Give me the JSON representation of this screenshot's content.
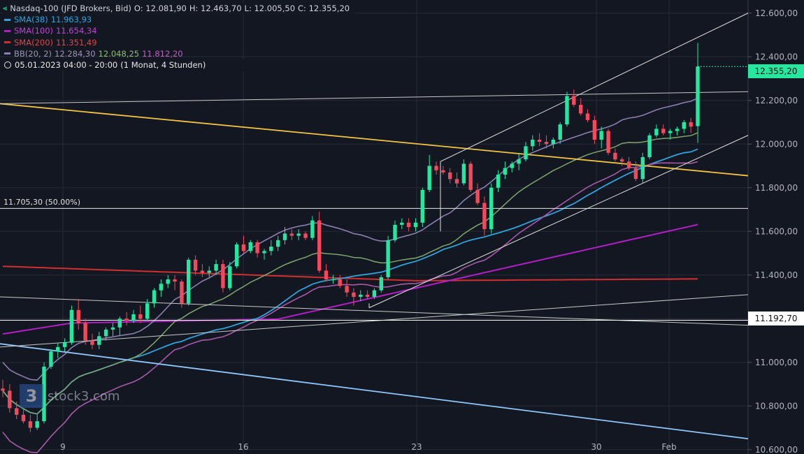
{
  "legend": {
    "instrument": "Nasdaq-100 (JFD Brokers, Bid)",
    "open": "O: 12.081,90",
    "high": "H: 12.463,70",
    "low": "L: 12.005,50",
    "close": "C: 12.355,20",
    "sma38_label": "SMA(38)",
    "sma38_value": "11.963,93",
    "sma100_label": "SMA(100)",
    "sma100_value": "11.654,34",
    "sma200_label": "SMA(200)",
    "sma200_value": "11.351,49",
    "bb_label": "BB(20, 2)",
    "bb_mid": "12.284,30",
    "bb_upper": "12.048,25",
    "bb_lower": "11.812,20",
    "time_range": "05.01.2023 04:00 - 20:00",
    "period": "(1 Monat, 4 Stunden)"
  },
  "price_tag": "12.355,20",
  "level_tag": "11.192,70",
  "fib_label": "11.705,30 (50.00%)",
  "watermark": "stock3.com",
  "colors": {
    "up": "#26e6a0",
    "down": "#f2495c",
    "sma38": "#2ea3dc",
    "sma100": "#b41ec8",
    "sma200": "#d12e2e",
    "bb_band": "#8a7fb0",
    "bb_mid": "#7fa66a",
    "bb_lower": "#a85aa8",
    "trend_yellow": "#f5c542",
    "trend_blue": "#8ec8ff"
  },
  "chart_data": {
    "type": "candlestick",
    "y_ticks": [
      "12.600,00",
      "12.400,00",
      "12.200,00",
      "12.000,00",
      "11.800,00",
      "11.600,00",
      "11.400,00",
      "11.200,00",
      "11.000,00",
      "10.800,00",
      "10.600,00"
    ],
    "x_ticks": [
      "9",
      "16",
      "23",
      "30",
      "Feb"
    ],
    "ylim": [
      10580,
      12660
    ],
    "candles": [
      [
        10880,
        10920,
        10840,
        10870
      ],
      [
        10870,
        10900,
        10770,
        10790
      ],
      [
        10790,
        10820,
        10740,
        10760
      ],
      [
        10760,
        10790,
        10720,
        10730
      ],
      [
        10730,
        10760,
        10680,
        10700
      ],
      [
        10700,
        10760,
        10690,
        10730
      ],
      [
        10730,
        11000,
        10720,
        10980
      ],
      [
        10980,
        11060,
        10970,
        11050
      ],
      [
        11050,
        11090,
        11020,
        11070
      ],
      [
        11070,
        11110,
        11050,
        11090
      ],
      [
        11090,
        11260,
        11080,
        11240
      ],
      [
        11240,
        11290,
        11150,
        11180
      ],
      [
        11180,
        11200,
        11080,
        11100
      ],
      [
        11100,
        11130,
        11060,
        11080
      ],
      [
        11080,
        11140,
        11060,
        11120
      ],
      [
        11120,
        11160,
        11100,
        11150
      ],
      [
        11150,
        11180,
        11120,
        11160
      ],
      [
        11160,
        11210,
        11120,
        11200
      ],
      [
        11200,
        11230,
        11170,
        11190
      ],
      [
        11190,
        11240,
        11180,
        11220
      ],
      [
        11220,
        11260,
        11180,
        11200
      ],
      [
        11200,
        11290,
        11190,
        11270
      ],
      [
        11270,
        11340,
        11250,
        11330
      ],
      [
        11330,
        11380,
        11300,
        11360
      ],
      [
        11360,
        11400,
        11340,
        11380
      ],
      [
        11380,
        11400,
        11330,
        11370
      ],
      [
        11370,
        11380,
        11250,
        11270
      ],
      [
        11270,
        11480,
        11260,
        11470
      ],
      [
        11470,
        11490,
        11400,
        11420
      ],
      [
        11420,
        11450,
        11390,
        11410
      ],
      [
        11410,
        11440,
        11390,
        11420
      ],
      [
        11420,
        11470,
        11400,
        11450
      ],
      [
        11450,
        11470,
        11320,
        11340
      ],
      [
        11340,
        11460,
        11330,
        11440
      ],
      [
        11440,
        11550,
        11430,
        11540
      ],
      [
        11540,
        11580,
        11500,
        11510
      ],
      [
        11510,
        11560,
        11500,
        11550
      ],
      [
        11550,
        11560,
        11480,
        11500
      ],
      [
        11500,
        11520,
        11470,
        11510
      ],
      [
        11510,
        11560,
        11490,
        11530
      ],
      [
        11530,
        11580,
        11510,
        11560
      ],
      [
        11560,
        11620,
        11540,
        11590
      ],
      [
        11590,
        11610,
        11560,
        11580
      ],
      [
        11580,
        11610,
        11560,
        11590
      ],
      [
        11590,
        11600,
        11560,
        11570
      ],
      [
        11570,
        11670,
        11560,
        11650
      ],
      [
        11650,
        11690,
        11410,
        11420
      ],
      [
        11420,
        11450,
        11370,
        11380
      ],
      [
        11380,
        11400,
        11360,
        11380
      ],
      [
        11380,
        11400,
        11340,
        11350
      ],
      [
        11350,
        11380,
        11300,
        11320
      ],
      [
        11320,
        11340,
        11260,
        11300
      ],
      [
        11300,
        11330,
        11280,
        11310
      ],
      [
        11310,
        11330,
        11290,
        11300
      ],
      [
        11300,
        11340,
        11290,
        11330
      ],
      [
        11330,
        11400,
        11320,
        11390
      ],
      [
        11390,
        11580,
        11380,
        11560
      ],
      [
        11560,
        11650,
        11550,
        11630
      ],
      [
        11630,
        11660,
        11610,
        11640
      ],
      [
        11640,
        11660,
        11600,
        11620
      ],
      [
        11620,
        11660,
        11600,
        11640
      ],
      [
        11640,
        11800,
        11620,
        11790
      ],
      [
        11790,
        11950,
        11780,
        11900
      ],
      [
        11900,
        11920,
        11860,
        11880
      ],
      [
        11880,
        11900,
        11860,
        11870
      ],
      [
        11870,
        11890,
        11820,
        11840
      ],
      [
        11840,
        11870,
        11800,
        11820
      ],
      [
        11820,
        11930,
        11810,
        11910
      ],
      [
        11910,
        11920,
        11780,
        11790
      ],
      [
        11790,
        11820,
        11720,
        11730
      ],
      [
        11730,
        11760,
        11580,
        11610
      ],
      [
        11610,
        11820,
        11590,
        11800
      ],
      [
        11800,
        11880,
        11780,
        11860
      ],
      [
        11860,
        11920,
        11840,
        11890
      ],
      [
        11890,
        11920,
        11870,
        11910
      ],
      [
        11910,
        11960,
        11880,
        11930
      ],
      [
        11930,
        12010,
        11920,
        11990
      ],
      [
        11990,
        12040,
        11970,
        12020
      ],
      [
        12020,
        12050,
        11990,
        12010
      ],
      [
        12010,
        12040,
        11980,
        12000
      ],
      [
        12000,
        12030,
        11980,
        12020
      ],
      [
        12020,
        12100,
        12000,
        12090
      ],
      [
        12090,
        12240,
        12080,
        12220
      ],
      [
        12220,
        12250,
        12170,
        12180
      ],
      [
        12180,
        12210,
        12130,
        12140
      ],
      [
        12140,
        12160,
        12100,
        12110
      ],
      [
        12110,
        12130,
        12000,
        12020
      ],
      [
        12020,
        12080,
        11980,
        12060
      ],
      [
        12060,
        12070,
        11950,
        11960
      ],
      [
        11960,
        11980,
        11920,
        11930
      ],
      [
        11930,
        11940,
        11900,
        11920
      ],
      [
        11920,
        11940,
        11880,
        11890
      ],
      [
        11890,
        11920,
        11830,
        11840
      ],
      [
        11840,
        11960,
        11820,
        11940
      ],
      [
        11940,
        12050,
        11930,
        12040
      ],
      [
        12040,
        12090,
        12030,
        12070
      ],
      [
        12070,
        12090,
        12040,
        12050
      ],
      [
        12050,
        12070,
        12020,
        12060
      ],
      [
        12060,
        12080,
        12040,
        12070
      ],
      [
        12070,
        12110,
        12050,
        12100
      ],
      [
        12100,
        12120,
        12050,
        12080
      ],
      [
        12081.9,
        12463.7,
        12005.5,
        12355.2
      ]
    ]
  }
}
